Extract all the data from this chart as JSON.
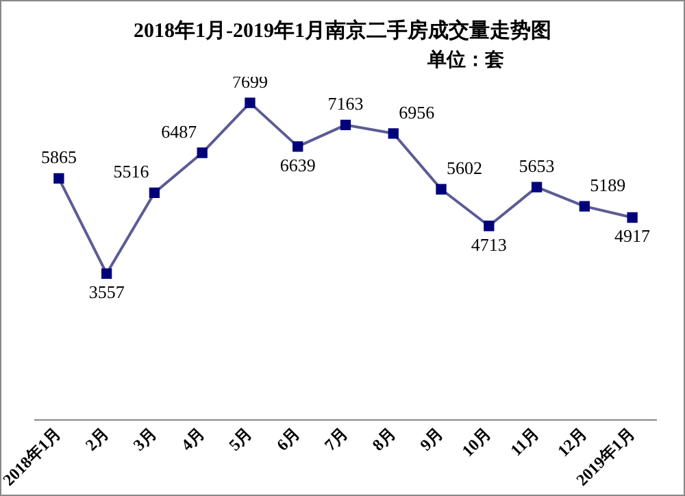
{
  "chart_data": {
    "type": "line",
    "title": "2018年1月-2019年1月南京二手房成交量走势图",
    "subtitle": "单位：套",
    "categories": [
      "2018年1月",
      "2月",
      "3月",
      "4月",
      "5月",
      "6月",
      "7月",
      "8月",
      "9月",
      "10月",
      "11月",
      "12月",
      "2019年1月"
    ],
    "series": [
      {
        "color": "#5b5b95",
        "values": [
          5865,
          3557,
          5516,
          6487,
          7699,
          6639,
          7163,
          6956,
          5602,
          4713,
          5653,
          5189,
          4917
        ]
      }
    ],
    "marker": "square",
    "data_labels": true,
    "legend": false,
    "grid": false,
    "tick_labels": "x"
  }
}
